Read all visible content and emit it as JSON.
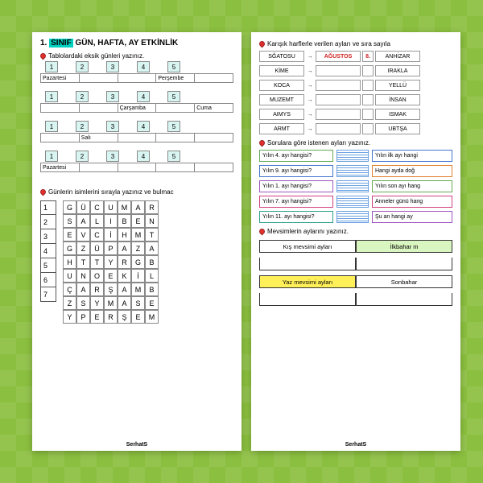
{
  "left": {
    "title_pre": "1. ",
    "title_hl": "SINIF",
    "title_post": " GÜN, HAFTA, AY ETKİNLİK",
    "sect1": "Tablolardaki eksik günleri yazınız.",
    "rows": [
      {
        "nums": [
          "1",
          "2",
          "3",
          "4",
          "5"
        ],
        "labels": [
          "Pazartesi",
          "",
          "",
          "Perşembe",
          ""
        ]
      },
      {
        "nums": [
          "1",
          "2",
          "3",
          "4",
          "5"
        ],
        "labels": [
          "",
          "",
          "Çarşamba",
          "",
          "Cuma"
        ]
      },
      {
        "nums": [
          "1",
          "2",
          "3",
          "4",
          "5"
        ],
        "labels": [
          "",
          "Salı",
          "",
          "",
          ""
        ]
      },
      {
        "nums": [
          "1",
          "2",
          "3",
          "4",
          "5"
        ],
        "labels": [
          "Pazartesi",
          "",
          "",
          "",
          ""
        ]
      }
    ],
    "sect2": "Günlerin isimlerini sırayla yazınız ve bulmac",
    "listNums": [
      "1",
      "2",
      "3",
      "4",
      "5",
      "6",
      "7"
    ],
    "grid": [
      [
        "G",
        "Ü",
        "C",
        "U",
        "M",
        "A",
        "R"
      ],
      [
        "S",
        "A",
        "L",
        "I",
        "B",
        "E",
        "N"
      ],
      [
        "E",
        "V",
        "C",
        "İ",
        "H",
        "M",
        "T"
      ],
      [
        "G",
        "Z",
        "Ü",
        "P",
        "A",
        "Z",
        "A"
      ],
      [
        "H",
        "T",
        "T",
        "Y",
        "R",
        "G",
        "B"
      ],
      [
        "U",
        "N",
        "O",
        "E",
        "K",
        "İ",
        "L"
      ],
      [
        "Ç",
        "A",
        "R",
        "Ş",
        "A",
        "M",
        "B"
      ],
      [
        "Z",
        "S",
        "Y",
        "M",
        "A",
        "S",
        "E"
      ],
      [
        "Y",
        "P",
        "E",
        "R",
        "Ş",
        "E",
        "M"
      ]
    ]
  },
  "right": {
    "sect1": "Karışık harflerle verilen ayları ve sıra sayıla",
    "scramble": [
      {
        "s": "SĞATOSU",
        "a": "AĞUSTOS",
        "o": "8.",
        "h": "ANHİZAR"
      },
      {
        "s": "KİME",
        "a": "",
        "o": "",
        "h": "IRAKLA"
      },
      {
        "s": "KOCA",
        "a": "",
        "o": "",
        "h": "YELLÜ"
      },
      {
        "s": "MUZEMT",
        "a": "",
        "o": "",
        "h": "İNSAN"
      },
      {
        "s": "AIMYS",
        "a": "",
        "o": "",
        "h": "ISMAK"
      },
      {
        "s": "ARMT",
        "a": "",
        "o": "",
        "h": "UBTŞA"
      }
    ],
    "sect2": "Sorulara göre istenen ayları yazınız.",
    "qs": [
      {
        "l": "Yılın 4. ayı hangisi?",
        "c": "#66aa55",
        "r": "Yılın ilk ayı hangi",
        "rc": "#4477cc"
      },
      {
        "l": "Yılın 9. ayı hangisi?",
        "c": "#4477cc",
        "r": "Hangi ayda doğ",
        "rc": "#e08030"
      },
      {
        "l": "Yılın 1. ayı hangisi?",
        "c": "#a055c0",
        "r": "Yılın son ayı hang",
        "rc": "#66aa55"
      },
      {
        "l": "Yılın 7. ayı hangisi?",
        "c": "#d04080",
        "r": "Anneler günü hang",
        "rc": "#d04080"
      },
      {
        "l": "Yılın 11. ayı hangisi?",
        "c": "#30a090",
        "r": "Şu an hangi ay",
        "rc": "#a055c0"
      }
    ],
    "sect3": "Mevsimlerin aylarını yazınız.",
    "seasons1": [
      {
        "t": "Kış mevsimi ayları",
        "bg": "#ffffff"
      },
      {
        "t": "İlkbahar m",
        "bg": "#d9f5c0"
      }
    ],
    "seasons2": [
      {
        "t": "Yaz mevsimi ayları",
        "bg": "#fff05a"
      },
      {
        "t": "Sonbahar",
        "bg": "#ffffff"
      }
    ]
  },
  "footer": "SerhatS"
}
